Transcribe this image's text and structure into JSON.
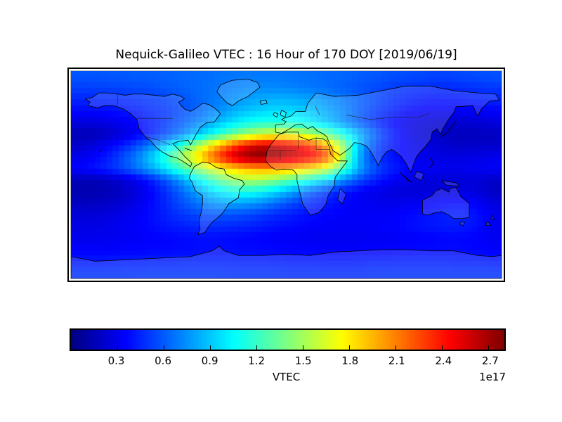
{
  "title": "Nequick-Galileo VTEC : 16 Hour of 170 DOY [2019/06/19]",
  "colorbar": {
    "label": "VTEC",
    "offset_label": "1e17",
    "colormap": "jet",
    "vmin": 0.0,
    "vmax": 2.8,
    "ticks": [
      0.3,
      0.6,
      0.9,
      1.2,
      1.5,
      1.8,
      2.1,
      2.4,
      2.7
    ],
    "tick_labels": [
      "0.3",
      "0.6",
      "0.9",
      "1.2",
      "1.5",
      "1.8",
      "2.1",
      "2.4",
      "2.7"
    ],
    "colormap_stops": [
      [
        0.0,
        "#000080"
      ],
      [
        0.125,
        "#0000ff"
      ],
      [
        0.375,
        "#00ffff"
      ],
      [
        0.625,
        "#ffff00"
      ],
      [
        0.875,
        "#ff0000"
      ],
      [
        1.0,
        "#800000"
      ]
    ]
  },
  "chart_data": {
    "type": "heatmap",
    "title": "Nequick-Galileo VTEC : 16 Hour of 170 DOY [2019/06/19]",
    "colorbar_label": "VTEC",
    "scale_multiplier": "1e17",
    "projection": "equirectangular",
    "lon_range": [
      -180,
      180
    ],
    "lat_range": [
      -90,
      90
    ],
    "grid_step_deg": 10,
    "lon_centers_start": -175,
    "lat_centers_start": 85,
    "value_range": [
      0.0,
      2.8
    ],
    "values": [
      [
        0.58,
        0.58,
        0.58,
        0.59,
        0.59,
        0.6,
        0.6,
        0.61,
        0.62,
        0.63,
        0.64,
        0.65,
        0.66,
        0.67,
        0.68,
        0.68,
        0.68,
        0.68,
        0.67,
        0.66,
        0.65,
        0.64,
        0.63,
        0.62,
        0.6,
        0.59,
        0.57,
        0.56,
        0.55,
        0.54,
        0.53,
        0.53,
        0.54,
        0.55,
        0.56,
        0.57
      ],
      [
        0.52,
        0.52,
        0.53,
        0.53,
        0.54,
        0.55,
        0.56,
        0.58,
        0.6,
        0.62,
        0.64,
        0.66,
        0.68,
        0.7,
        0.72,
        0.73,
        0.73,
        0.72,
        0.71,
        0.69,
        0.67,
        0.65,
        0.62,
        0.6,
        0.57,
        0.55,
        0.52,
        0.5,
        0.48,
        0.47,
        0.46,
        0.46,
        0.47,
        0.48,
        0.49,
        0.5
      ],
      [
        0.45,
        0.45,
        0.45,
        0.46,
        0.47,
        0.48,
        0.5,
        0.52,
        0.55,
        0.58,
        0.62,
        0.66,
        0.7,
        0.74,
        0.78,
        0.81,
        0.83,
        0.84,
        0.83,
        0.81,
        0.78,
        0.74,
        0.7,
        0.65,
        0.6,
        0.55,
        0.5,
        0.46,
        0.43,
        0.41,
        0.4,
        0.4,
        0.41,
        0.42,
        0.43,
        0.44
      ],
      [
        0.36,
        0.36,
        0.37,
        0.38,
        0.4,
        0.42,
        0.45,
        0.48,
        0.52,
        0.57,
        0.62,
        0.68,
        0.75,
        0.82,
        0.88,
        0.92,
        0.95,
        0.96,
        0.95,
        0.92,
        0.87,
        0.81,
        0.74,
        0.66,
        0.58,
        0.51,
        0.45,
        0.4,
        0.36,
        0.33,
        0.32,
        0.31,
        0.32,
        0.33,
        0.34,
        0.35
      ],
      [
        0.26,
        0.26,
        0.27,
        0.29,
        0.32,
        0.36,
        0.41,
        0.47,
        0.54,
        0.62,
        0.7,
        0.79,
        0.88,
        0.97,
        1.05,
        1.1,
        1.13,
        1.13,
        1.1,
        1.05,
        0.97,
        0.88,
        0.78,
        0.67,
        0.57,
        0.47,
        0.39,
        0.33,
        0.28,
        0.25,
        0.23,
        0.22,
        0.22,
        0.23,
        0.24,
        0.25
      ],
      [
        0.15,
        0.15,
        0.17,
        0.21,
        0.27,
        0.33,
        0.41,
        0.5,
        0.61,
        0.73,
        0.87,
        1.02,
        1.17,
        1.32,
        1.45,
        1.56,
        1.63,
        1.66,
        1.64,
        1.58,
        1.48,
        1.34,
        1.17,
        0.98,
        0.79,
        0.62,
        0.47,
        0.36,
        0.28,
        0.23,
        0.2,
        0.18,
        0.17,
        0.17,
        0.18,
        0.18
      ],
      [
        0.2,
        0.24,
        0.3,
        0.36,
        0.44,
        0.55,
        0.68,
        0.84,
        1.02,
        1.25,
        1.5,
        1.75,
        2.0,
        2.25,
        2.45,
        2.58,
        2.62,
        2.58,
        2.5,
        2.4,
        2.25,
        1.95,
        1.6,
        1.15,
        0.75,
        0.55,
        0.44,
        0.37,
        0.31,
        0.27,
        0.24,
        0.22,
        0.2,
        0.2,
        0.2,
        0.21
      ],
      [
        0.3,
        0.33,
        0.38,
        0.46,
        0.57,
        0.7,
        0.87,
        1.07,
        1.3,
        1.55,
        1.8,
        2.08,
        2.33,
        2.55,
        2.7,
        2.78,
        2.76,
        2.7,
        2.62,
        2.52,
        2.42,
        2.2,
        1.75,
        1.1,
        0.7,
        0.5,
        0.42,
        0.36,
        0.32,
        0.3,
        0.28,
        0.27,
        0.27,
        0.28,
        0.29,
        0.3
      ],
      [
        0.35,
        0.38,
        0.42,
        0.48,
        0.56,
        0.66,
        0.78,
        0.92,
        1.08,
        1.25,
        1.42,
        1.58,
        1.72,
        1.84,
        1.93,
        1.98,
        2.0,
        1.97,
        1.92,
        1.84,
        1.74,
        1.6,
        1.3,
        1.0,
        0.72,
        0.56,
        0.46,
        0.4,
        0.35,
        0.32,
        0.31,
        0.3,
        0.3,
        0.31,
        0.32,
        0.33
      ],
      [
        0.16,
        0.15,
        0.16,
        0.19,
        0.24,
        0.31,
        0.4,
        0.52,
        0.66,
        0.82,
        0.99,
        1.16,
        1.32,
        1.45,
        1.52,
        1.52,
        1.47,
        1.38,
        1.28,
        1.17,
        1.05,
        0.92,
        0.78,
        0.64,
        0.52,
        0.43,
        0.36,
        0.31,
        0.28,
        0.26,
        0.25,
        0.24,
        0.24,
        0.25,
        0.23,
        0.19
      ],
      [
        0.13,
        0.13,
        0.14,
        0.16,
        0.2,
        0.26,
        0.33,
        0.42,
        0.53,
        0.65,
        0.78,
        0.9,
        1.0,
        1.07,
        1.1,
        1.07,
        1.0,
        0.9,
        0.79,
        0.68,
        0.58,
        0.5,
        0.43,
        0.37,
        0.32,
        0.29,
        0.26,
        0.25,
        0.24,
        0.24,
        0.25,
        0.26,
        0.27,
        0.26,
        0.23,
        0.18
      ],
      [
        0.18,
        0.18,
        0.19,
        0.21,
        0.24,
        0.29,
        0.35,
        0.42,
        0.5,
        0.58,
        0.66,
        0.73,
        0.78,
        0.8,
        0.79,
        0.75,
        0.69,
        0.62,
        0.55,
        0.49,
        0.44,
        0.4,
        0.37,
        0.34,
        0.32,
        0.31,
        0.3,
        0.3,
        0.31,
        0.33,
        0.35,
        0.37,
        0.38,
        0.36,
        0.31,
        0.25
      ],
      [
        0.24,
        0.24,
        0.25,
        0.27,
        0.3,
        0.33,
        0.37,
        0.41,
        0.46,
        0.5,
        0.54,
        0.57,
        0.58,
        0.57,
        0.55,
        0.52,
        0.48,
        0.45,
        0.42,
        0.39,
        0.37,
        0.35,
        0.34,
        0.33,
        0.33,
        0.33,
        0.34,
        0.35,
        0.37,
        0.39,
        0.41,
        0.43,
        0.43,
        0.41,
        0.36,
        0.3
      ],
      [
        0.28,
        0.28,
        0.29,
        0.3,
        0.32,
        0.34,
        0.36,
        0.39,
        0.41,
        0.43,
        0.45,
        0.46,
        0.46,
        0.45,
        0.44,
        0.42,
        0.4,
        0.38,
        0.37,
        0.35,
        0.34,
        0.33,
        0.33,
        0.33,
        0.33,
        0.34,
        0.35,
        0.36,
        0.38,
        0.4,
        0.41,
        0.42,
        0.42,
        0.4,
        0.36,
        0.31
      ],
      [
        0.3,
        0.3,
        0.3,
        0.31,
        0.32,
        0.33,
        0.34,
        0.35,
        0.36,
        0.37,
        0.38,
        0.38,
        0.38,
        0.37,
        0.36,
        0.35,
        0.34,
        0.33,
        0.32,
        0.32,
        0.31,
        0.31,
        0.31,
        0.31,
        0.31,
        0.32,
        0.32,
        0.33,
        0.34,
        0.35,
        0.35,
        0.36,
        0.36,
        0.35,
        0.33,
        0.31
      ],
      [
        0.34,
        0.34,
        0.34,
        0.34,
        0.35,
        0.35,
        0.36,
        0.36,
        0.37,
        0.37,
        0.38,
        0.38,
        0.38,
        0.38,
        0.37,
        0.37,
        0.36,
        0.36,
        0.35,
        0.35,
        0.35,
        0.34,
        0.34,
        0.34,
        0.35,
        0.35,
        0.35,
        0.36,
        0.36,
        0.37,
        0.37,
        0.37,
        0.37,
        0.36,
        0.35,
        0.34
      ],
      [
        0.41,
        0.41,
        0.41,
        0.42,
        0.42,
        0.42,
        0.43,
        0.43,
        0.43,
        0.44,
        0.44,
        0.44,
        0.44,
        0.44,
        0.43,
        0.43,
        0.43,
        0.42,
        0.42,
        0.42,
        0.42,
        0.41,
        0.41,
        0.41,
        0.42,
        0.42,
        0.42,
        0.43,
        0.43,
        0.43,
        0.43,
        0.43,
        0.42,
        0.42,
        0.42,
        0.41
      ],
      [
        0.48,
        0.48,
        0.48,
        0.48,
        0.48,
        0.49,
        0.49,
        0.49,
        0.49,
        0.49,
        0.49,
        0.49,
        0.49,
        0.48,
        0.48,
        0.48,
        0.48,
        0.48,
        0.47,
        0.47,
        0.47,
        0.47,
        0.47,
        0.47,
        0.47,
        0.48,
        0.48,
        0.48,
        0.48,
        0.48,
        0.48,
        0.48,
        0.48,
        0.48,
        0.48,
        0.48
      ]
    ]
  }
}
